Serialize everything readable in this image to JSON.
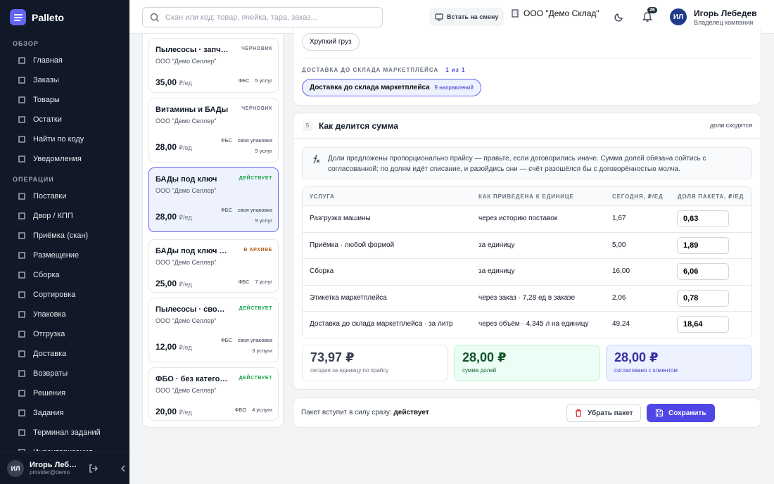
{
  "app": {
    "name": "Palleto"
  },
  "sidebar": {
    "section_overview": "ОБЗОР",
    "section_operations": "ОПЕРАЦИИ",
    "overview_items": [
      {
        "label": "Главная",
        "icon": "home-icon"
      },
      {
        "label": "Заказы",
        "icon": "orders-icon"
      },
      {
        "label": "Товары",
        "icon": "products-icon"
      },
      {
        "label": "Остатки",
        "icon": "stock-icon"
      },
      {
        "label": "Найти по коду",
        "icon": "search-code-icon"
      },
      {
        "label": "Уведомления",
        "icon": "bell-icon"
      }
    ],
    "operation_items": [
      {
        "label": "Поставки",
        "icon": "truck-icon"
      },
      {
        "label": "Двор / КПП",
        "icon": "gate-icon"
      },
      {
        "label": "Приёмка (скан)",
        "icon": "scan-icon"
      },
      {
        "label": "Размещение",
        "icon": "box-icon"
      },
      {
        "label": "Сборка",
        "icon": "cube-icon"
      },
      {
        "label": "Сортировка",
        "icon": "sort-icon"
      },
      {
        "label": "Упаковка",
        "icon": "package-icon"
      },
      {
        "label": "Отгрузка",
        "icon": "shipment-icon"
      },
      {
        "label": "Доставка",
        "icon": "delivery-icon"
      },
      {
        "label": "Возвраты",
        "icon": "return-icon"
      },
      {
        "label": "Решения",
        "icon": "list-icon"
      },
      {
        "label": "Задания",
        "icon": "tasks-icon"
      },
      {
        "label": "Терминал заданий",
        "icon": "terminal-icon"
      },
      {
        "label": "Инвентаризация",
        "icon": "inventory-icon"
      }
    ],
    "user": {
      "initials": "ИЛ",
      "name": "Игорь Лебедев",
      "email": "provider@demo"
    }
  },
  "topbar": {
    "search_placeholder": "Скан или код: товар, ячейка, тара, заказ...",
    "shift_button": "Встать на смену",
    "company": "ООО \"Демо Склад\"",
    "notifications_count": "26",
    "user_initials": "ИЛ",
    "user_name": "Игорь Лебедев",
    "user_role": "Владелец компании"
  },
  "packages": [
    {
      "name": "Пылесосы · запчасти",
      "status": "ЧЕРНОВИК",
      "status_color": "#6b7280",
      "seller": "ООО \"Демо Селлер\"",
      "price": "35,00",
      "unit": "₽/ед",
      "tag1": "ФБС",
      "tag2": "",
      "services": "5 услуг",
      "active": false
    },
    {
      "name": "Витамины и БАДы",
      "status": "ЧЕРНОВИК",
      "status_color": "#6b7280",
      "seller": "ООО \"Демо Селлер\"",
      "price": "28,00",
      "unit": "₽/ед",
      "tag1": "ФБС",
      "tag2": "своя упаковка",
      "services": "9 услуг",
      "active": false
    },
    {
      "name": "БАДы под ключ",
      "status": "ДЕЙСТВУЕТ",
      "status_color": "#16a34a",
      "seller": "ООО \"Демо Селлер\"",
      "price": "28,00",
      "unit": "₽/ед",
      "tag1": "ФБС",
      "tag2": "своя упаковка",
      "services": "9 услуг",
      "active": true
    },
    {
      "name": "БАДы под ключ · архив",
      "status": "В АРХИВЕ",
      "status_color": "#b45309",
      "seller": "ООО \"Демо Селлер\"",
      "price": "25,00",
      "unit": "₽/ед",
      "tag1": "ФБС",
      "tag2": "",
      "services": "7 услуг",
      "active": false
    },
    {
      "name": "Пылесосы · своя упаковка",
      "status": "ДЕЙСТВУЕТ",
      "status_color": "#16a34a",
      "seller": "ООО \"Демо Селлер\"",
      "price": "12,00",
      "unit": "₽/ед",
      "tag1": "ФБС",
      "tag2": "своя упаковка",
      "services": "3 услуги",
      "active": false
    },
    {
      "name": "ФБО · без категории",
      "status": "ДЕЙСТВУЕТ",
      "status_color": "#16a34a",
      "seller": "ООО \"Демо Селлер\"",
      "price": "20,00",
      "unit": "₽/ед",
      "tag1": "ФБО",
      "tag2": "",
      "services": "4 услуги",
      "active": false
    }
  ],
  "detail": {
    "fragile_chip": "Хрупкий груз",
    "delivery_label": "ДОСТАВКА ДО СКЛАДА МАРКЕТПЛЕЙСА",
    "delivery_counter": "1 из 1",
    "delivery_pill": "Доставка до склада маркетплейса",
    "delivery_pill_sub": "9 направлений",
    "split": {
      "step": "5",
      "title": "Как делится сумма",
      "status": "доли сходятся",
      "info_line1": "Доли предложены пропорционально прайсу — правьте, если договорились иначе. Сумма долей обязана сойтись с",
      "info_line2": "согласованной: по долям идёт списание, и разойдись они — счёт разошёлся бы с договорённостью молча.",
      "columns": [
        "УСЛУГА",
        "КАК ПРИВЕДЕНА К ЕДИНИЦЕ",
        "СЕГОДНЯ, ₽/ЕД",
        "ДОЛЯ ПАКЕТА, ₽/ЕД"
      ],
      "rows": [
        {
          "service": "Разгрузка машины",
          "method": "через историю поставок",
          "today": "1,67",
          "share": "0,63"
        },
        {
          "service": "Приёмка · любой формой",
          "method": "за единицу",
          "today": "5,00",
          "share": "1,89"
        },
        {
          "service": "Сборка",
          "method": "за единицу",
          "today": "16,00",
          "share": "6,06"
        },
        {
          "service": "Этикетка маркетплейса",
          "method": "через заказ · 7,28 ед в заказе",
          "today": "2,06",
          "share": "0,78"
        },
        {
          "service": "Доставка до склада маркетплейса · за литр",
          "method": "через объём · 4,345 л на единицу",
          "today": "49,24",
          "share": "18,64"
        }
      ],
      "sum_today": "73,97 ₽",
      "sum_today_label": "сегодня за единицу по прайсу",
      "sum_shares": "28,00 ₽",
      "sum_shares_label": "сумма долей",
      "sum_agreed": "28,00 ₽",
      "sum_agreed_label": "согласовано с клиентом"
    },
    "footer": {
      "text": "Пакет вступит в силу сразу:",
      "value": "действует",
      "remove_button": "Убрать пакет",
      "save_button": "Сохранить"
    }
  },
  "colors": {
    "accent": "#4f46e5",
    "sidebar": "#111827",
    "success": "#16a34a"
  }
}
